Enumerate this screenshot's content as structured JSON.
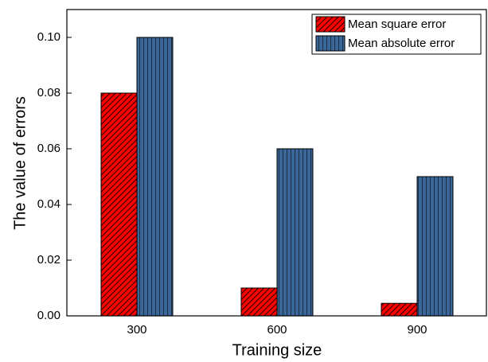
{
  "chart_data": {
    "type": "bar",
    "x_label": "Training size",
    "y_label": "The value of errors",
    "categories": [
      "300",
      "600",
      "900"
    ],
    "series": [
      {
        "name": "Mean square error",
        "color": "#ff0000",
        "values": [
          0.08,
          0.01,
          0.0045
        ]
      },
      {
        "name": "Mean absolute error",
        "color": "#3a6698",
        "values": [
          0.1,
          0.06,
          0.05
        ]
      }
    ],
    "ylim": [
      0,
      0.11
    ],
    "yticks": [
      {
        "value": 0,
        "label": "0.00"
      },
      0.02,
      0.04,
      0.06,
      0.08,
      {
        "value": 0.1,
        "label": "0.10"
      }
    ],
    "legend": "upper right"
  }
}
